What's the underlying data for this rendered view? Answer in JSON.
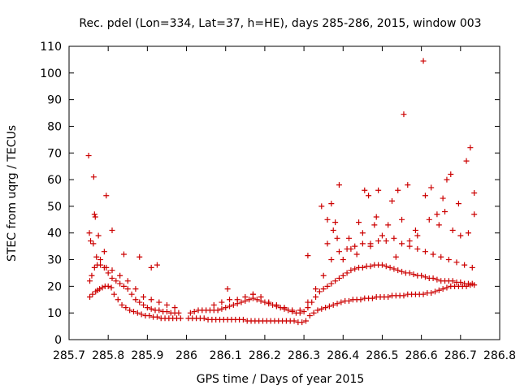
{
  "chart_data": {
    "type": "scatter",
    "title": "Rec. pdel (Lon=334, Lat=37, h=HE), days 285-286, 2015, window 003",
    "xlabel": "GPS time / Days of year 2015",
    "ylabel": "STEC from uqrg / TECUs",
    "xlim": [
      285.7,
      286.8
    ],
    "ylim": [
      0,
      110
    ],
    "xticks": [
      "285.7",
      "285.8",
      "285.9",
      "286",
      "286.1",
      "286.2",
      "286.3",
      "286.4",
      "286.5",
      "286.6",
      "286.7",
      "286.8"
    ],
    "yticks": [
      "0",
      "10",
      "20",
      "30",
      "40",
      "50",
      "60",
      "70",
      "80",
      "90",
      "100",
      "110"
    ],
    "marker": "+",
    "color": "#cc0000",
    "grid": false,
    "legend": "none",
    "series": [
      {
        "x": [
          285.753,
          285.76,
          285.768,
          285.773,
          285.778,
          285.785,
          285.792,
          285.8,
          285.808,
          285.815,
          285.825,
          285.835,
          285.845,
          285.855,
          285.865,
          285.875,
          285.885,
          285.895,
          285.905,
          285.915,
          285.925,
          285.935,
          285.945,
          285.955,
          285.965,
          285.975,
          285.985,
          286.005,
          286.015,
          286.025,
          286.035,
          286.045,
          286.055,
          286.065,
          286.075,
          286.085,
          286.095,
          286.105,
          286.115,
          286.125,
          286.135,
          286.145,
          286.155,
          286.165,
          286.175,
          286.185,
          286.195,
          286.205,
          286.215,
          286.225,
          286.235,
          286.245,
          286.255,
          286.265,
          286.275,
          286.285,
          286.295,
          286.305,
          286.315,
          286.325,
          286.335,
          286.345,
          286.355,
          286.365,
          286.375,
          286.385,
          286.395,
          286.405,
          286.415,
          286.425,
          286.435,
          286.445,
          286.455,
          286.465,
          286.475,
          286.485,
          286.495,
          286.505,
          286.515,
          286.525,
          286.535,
          286.545,
          286.555,
          286.565,
          286.575,
          286.585,
          286.595,
          286.605,
          286.615,
          286.625,
          286.635,
          286.645,
          286.655,
          286.665,
          286.675,
          286.685,
          286.695,
          286.705,
          286.715,
          286.725,
          286.735
        ],
        "y": [
          16,
          17,
          18,
          18.5,
          19,
          19.5,
          20,
          20,
          19.5,
          17,
          15,
          13,
          12,
          11,
          10.5,
          10,
          9.5,
          9,
          9,
          8.5,
          8.5,
          8,
          8,
          8,
          8,
          8,
          8,
          8,
          8,
          8,
          8,
          8,
          7.5,
          7.5,
          7.5,
          7.5,
          7.5,
          7.5,
          7.5,
          7.5,
          7.5,
          7.5,
          7,
          7,
          7,
          7,
          7,
          7,
          7,
          7,
          7,
          7,
          7,
          7,
          7,
          6.5,
          6.5,
          7,
          9,
          10,
          11,
          11.5,
          12,
          12.5,
          13,
          13.5,
          14,
          14.5,
          14.5,
          15,
          15,
          15,
          15.5,
          15.5,
          15.5,
          16,
          16,
          16,
          16,
          16.5,
          16.5,
          16.5,
          16.5,
          17,
          17,
          17,
          17,
          17,
          17.5,
          17.5,
          18,
          18.5,
          19,
          19.5,
          20,
          20,
          20,
          20,
          20,
          20.5,
          20.5
        ]
      },
      {
        "x": [
          285.753,
          285.758,
          285.765,
          285.772,
          285.78,
          285.79,
          285.8,
          285.81,
          285.82,
          285.83,
          285.84,
          285.85,
          285.86,
          285.87,
          285.88,
          285.89,
          285.9,
          285.91,
          285.92,
          285.93,
          285.94,
          285.95,
          285.96,
          285.97,
          285.98,
          286.01,
          286.02,
          286.03,
          286.04,
          286.05,
          286.06,
          286.07,
          286.08,
          286.09,
          286.1,
          286.11,
          286.12,
          286.13,
          286.14,
          286.15,
          286.16,
          286.17,
          286.18,
          286.19,
          286.2,
          286.21,
          286.22,
          286.23,
          286.24,
          286.25,
          286.26,
          286.27,
          286.28,
          286.29,
          286.3,
          286.31,
          286.32,
          286.33,
          286.34,
          286.35,
          286.36,
          286.37,
          286.38,
          286.39,
          286.4,
          286.41,
          286.42,
          286.43,
          286.44,
          286.45,
          286.46,
          286.47,
          286.48,
          286.49,
          286.5,
          286.51,
          286.52,
          286.53,
          286.54,
          286.55,
          286.56,
          286.57,
          286.58,
          286.59,
          286.6,
          286.61,
          286.62,
          286.63,
          286.64,
          286.65,
          286.66,
          286.67,
          286.68,
          286.69,
          286.7,
          286.71,
          286.72,
          286.73
        ],
        "y": [
          22,
          24,
          27,
          28,
          28,
          27,
          25,
          23,
          22,
          21,
          20,
          19,
          17,
          15,
          14,
          13,
          12,
          11.5,
          11,
          11,
          10.5,
          10.5,
          10,
          10,
          10,
          10,
          10.5,
          11,
          11,
          11,
          11,
          11,
          11,
          11.5,
          12,
          12.5,
          13,
          13.5,
          14,
          14.5,
          15,
          15.5,
          15,
          14.5,
          14,
          13.5,
          13,
          12.5,
          12,
          11.5,
          11,
          10.5,
          10,
          10,
          10.5,
          12,
          14,
          16,
          18,
          19,
          20,
          21,
          22,
          23,
          24,
          25,
          26,
          26.5,
          27,
          27,
          27.5,
          27.5,
          28,
          28,
          28,
          27.5,
          27,
          26.5,
          26,
          25.5,
          25,
          25,
          24.5,
          24,
          24,
          23.5,
          23,
          23,
          22.5,
          22,
          22,
          22,
          22,
          21.5,
          21.5,
          21,
          21,
          21
        ]
      },
      {
        "x": [
          285.755,
          285.762,
          285.77,
          285.78,
          285.795,
          285.81,
          285.83,
          285.85,
          285.87,
          285.89,
          285.91,
          285.93,
          285.95,
          285.97,
          286.07,
          286.09,
          286.11,
          286.13,
          286.15,
          286.17,
          286.19,
          286.21,
          286.23,
          286.25,
          286.27,
          286.29,
          286.31,
          286.33,
          286.35,
          286.37,
          286.39,
          286.41,
          286.43,
          286.45,
          286.47,
          286.49,
          286.51,
          286.53,
          286.55,
          286.57,
          286.59,
          286.61,
          286.63,
          286.65,
          286.67,
          286.69,
          286.71,
          286.73
        ],
        "y": [
          37,
          36,
          31,
          30,
          27,
          26,
          24,
          22,
          19,
          16,
          15,
          14,
          13,
          12,
          13,
          14,
          15,
          15,
          16,
          17,
          16,
          14,
          13,
          12,
          11,
          11,
          14,
          19,
          24,
          30,
          33,
          34,
          35,
          36,
          36,
          37,
          37,
          38,
          36,
          35,
          34,
          33,
          32,
          31,
          30,
          29,
          28,
          27
        ]
      },
      {
        "x": [
          285.75,
          285.763,
          285.767,
          285.795,
          285.81,
          285.84,
          285.88,
          285.91,
          285.925,
          286.105,
          286.17,
          286.31,
          286.345,
          286.36,
          286.37,
          286.38,
          286.39,
          286.415,
          286.44,
          286.455,
          286.465,
          286.48,
          286.49,
          286.525,
          286.54,
          286.555,
          286.565,
          286.585,
          286.605,
          286.61,
          286.625,
          286.645,
          286.655,
          286.665,
          286.675,
          286.695,
          286.715,
          286.725,
          286.735
        ],
        "y": [
          69,
          61,
          46,
          54,
          41,
          32,
          31,
          27,
          28,
          19,
          17,
          31.5,
          50,
          45,
          51,
          44,
          58,
          38,
          44,
          56,
          54,
          43,
          56,
          52,
          56,
          84.5,
          58,
          41,
          104.5,
          54,
          57,
          43,
          53,
          60,
          62,
          51,
          67,
          72,
          55
        ]
      },
      {
        "x": [
          285.752,
          285.765,
          285.775,
          285.79,
          286.36,
          286.375,
          286.385,
          286.4,
          286.42,
          286.435,
          286.45,
          286.47,
          286.485,
          286.5,
          286.515,
          286.535,
          286.55,
          286.57,
          286.59,
          286.62,
          286.64,
          286.66,
          286.68,
          286.7,
          286.72,
          286.735
        ],
        "y": [
          40,
          47,
          39,
          33,
          36,
          41,
          38,
          30,
          34,
          32,
          40,
          35,
          46,
          39,
          43,
          31,
          45,
          37,
          39,
          45,
          47,
          48,
          41,
          39,
          40,
          47
        ]
      }
    ]
  }
}
